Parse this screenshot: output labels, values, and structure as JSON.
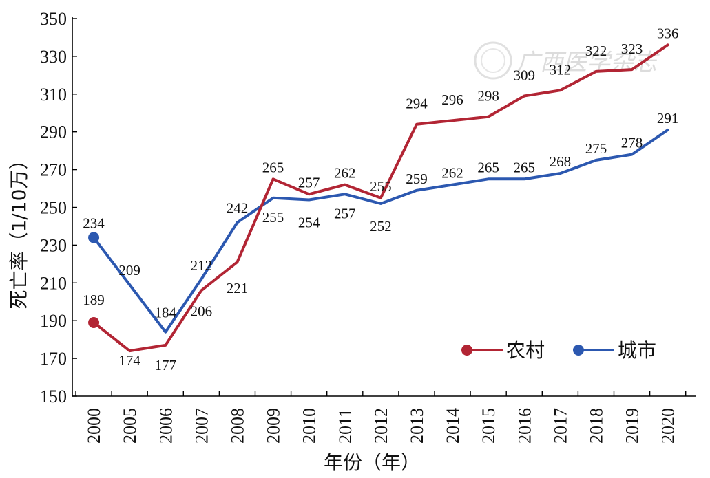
{
  "chart_data": {
    "type": "line",
    "title": "",
    "xlabel": "年份（年）",
    "ylabel": "死亡率（1/10万）",
    "categories": [
      "2000",
      "2005",
      "2006",
      "2007",
      "2008",
      "2009",
      "2010",
      "2011",
      "2012",
      "2013",
      "2014",
      "2015",
      "2016",
      "2017",
      "2018",
      "2019",
      "2020"
    ],
    "ylim": [
      150,
      350
    ],
    "yticks": [
      150,
      170,
      190,
      210,
      230,
      250,
      270,
      290,
      310,
      330,
      350
    ],
    "grid": false,
    "legend_position": "bottom-right",
    "series": [
      {
        "name": "农村",
        "color": "#b22534",
        "values": [
          189,
          174,
          177,
          206,
          221,
          265,
          257,
          262,
          255,
          294,
          296,
          298,
          309,
          312,
          322,
          323,
          336
        ]
      },
      {
        "name": "城市",
        "color": "#2c58b0",
        "values": [
          234,
          209,
          184,
          212,
          242,
          255,
          254,
          257,
          252,
          259,
          262,
          265,
          265,
          268,
          275,
          278,
          291
        ]
      }
    ]
  },
  "watermark": {
    "text": "广西医学杂志",
    "icon": "journal-seal-icon"
  }
}
